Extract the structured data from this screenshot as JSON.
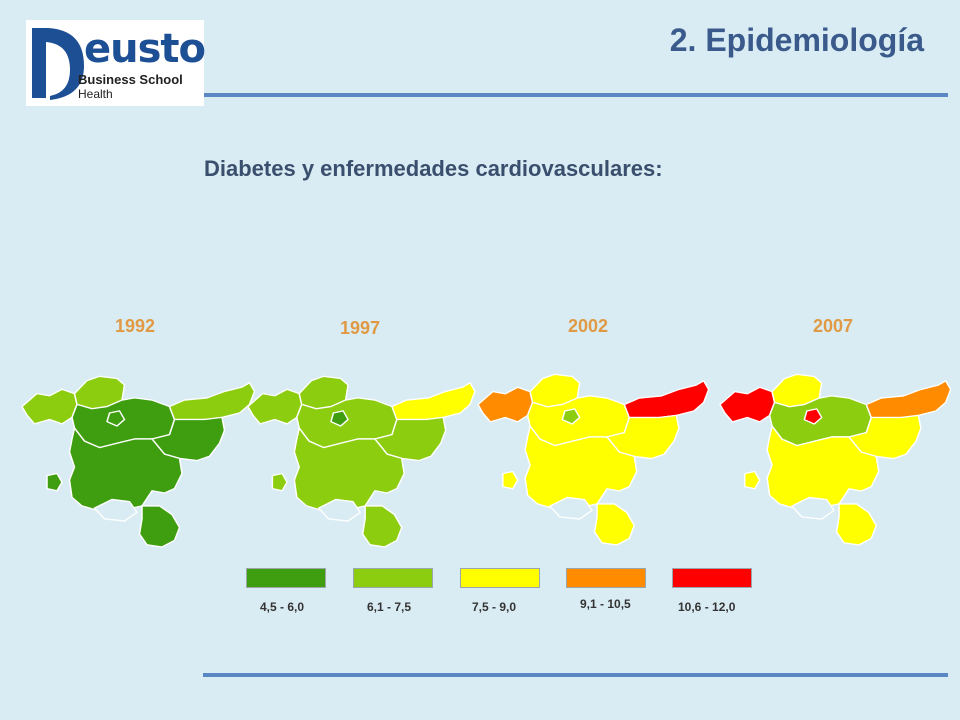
{
  "logo": {
    "brand": "eusto",
    "line1": "Business School",
    "line2": "Health",
    "color": "#1d4f94"
  },
  "header": {
    "title": "2. Epidemiología"
  },
  "subtitle": "Diabetes y enfermedades cardiovasculares:",
  "colors": {
    "c1": "#3e9e10",
    "c2": "#8ccd10",
    "c3": "#ffff00",
    "c4": "#ff8c00",
    "c5": "#ff0000"
  },
  "maps": [
    {
      "year": "1992",
      "regions": {
        "west": "c2",
        "enclave": "c1",
        "north": "c2",
        "center": "c1",
        "east": "c2",
        "southeast": "c1",
        "south": "c1",
        "south_lobe": "c1",
        "island": "c1"
      }
    },
    {
      "year": "1997",
      "regions": {
        "west": "c2",
        "enclave": "c1",
        "north": "c2",
        "center": "c2",
        "east": "c3",
        "southeast": "c2",
        "south": "c2",
        "south_lobe": "c2",
        "island": "c2"
      }
    },
    {
      "year": "2002",
      "regions": {
        "west": "c4",
        "enclave": "c2",
        "north": "c3",
        "center": "c3",
        "east": "c5",
        "southeast": "c3",
        "south": "c3",
        "south_lobe": "c3",
        "island": "c3"
      }
    },
    {
      "year": "2007",
      "regions": {
        "west": "c5",
        "enclave": "c5",
        "north": "c3",
        "center": "c2",
        "east": "c4",
        "southeast": "c3",
        "south": "c3",
        "south_lobe": "c3",
        "island": "c3"
      }
    }
  ],
  "legend": [
    {
      "label": "4,5 -  6,0",
      "color": "c1"
    },
    {
      "label": "6,1 - 7,5",
      "color": "c2"
    },
    {
      "label": "7,5 -  9,0",
      "color": "c3"
    },
    {
      "label": "9,1 - 10,5",
      "color": "c4"
    },
    {
      "label": "10,6 - 12,0",
      "color": "c5"
    }
  ]
}
